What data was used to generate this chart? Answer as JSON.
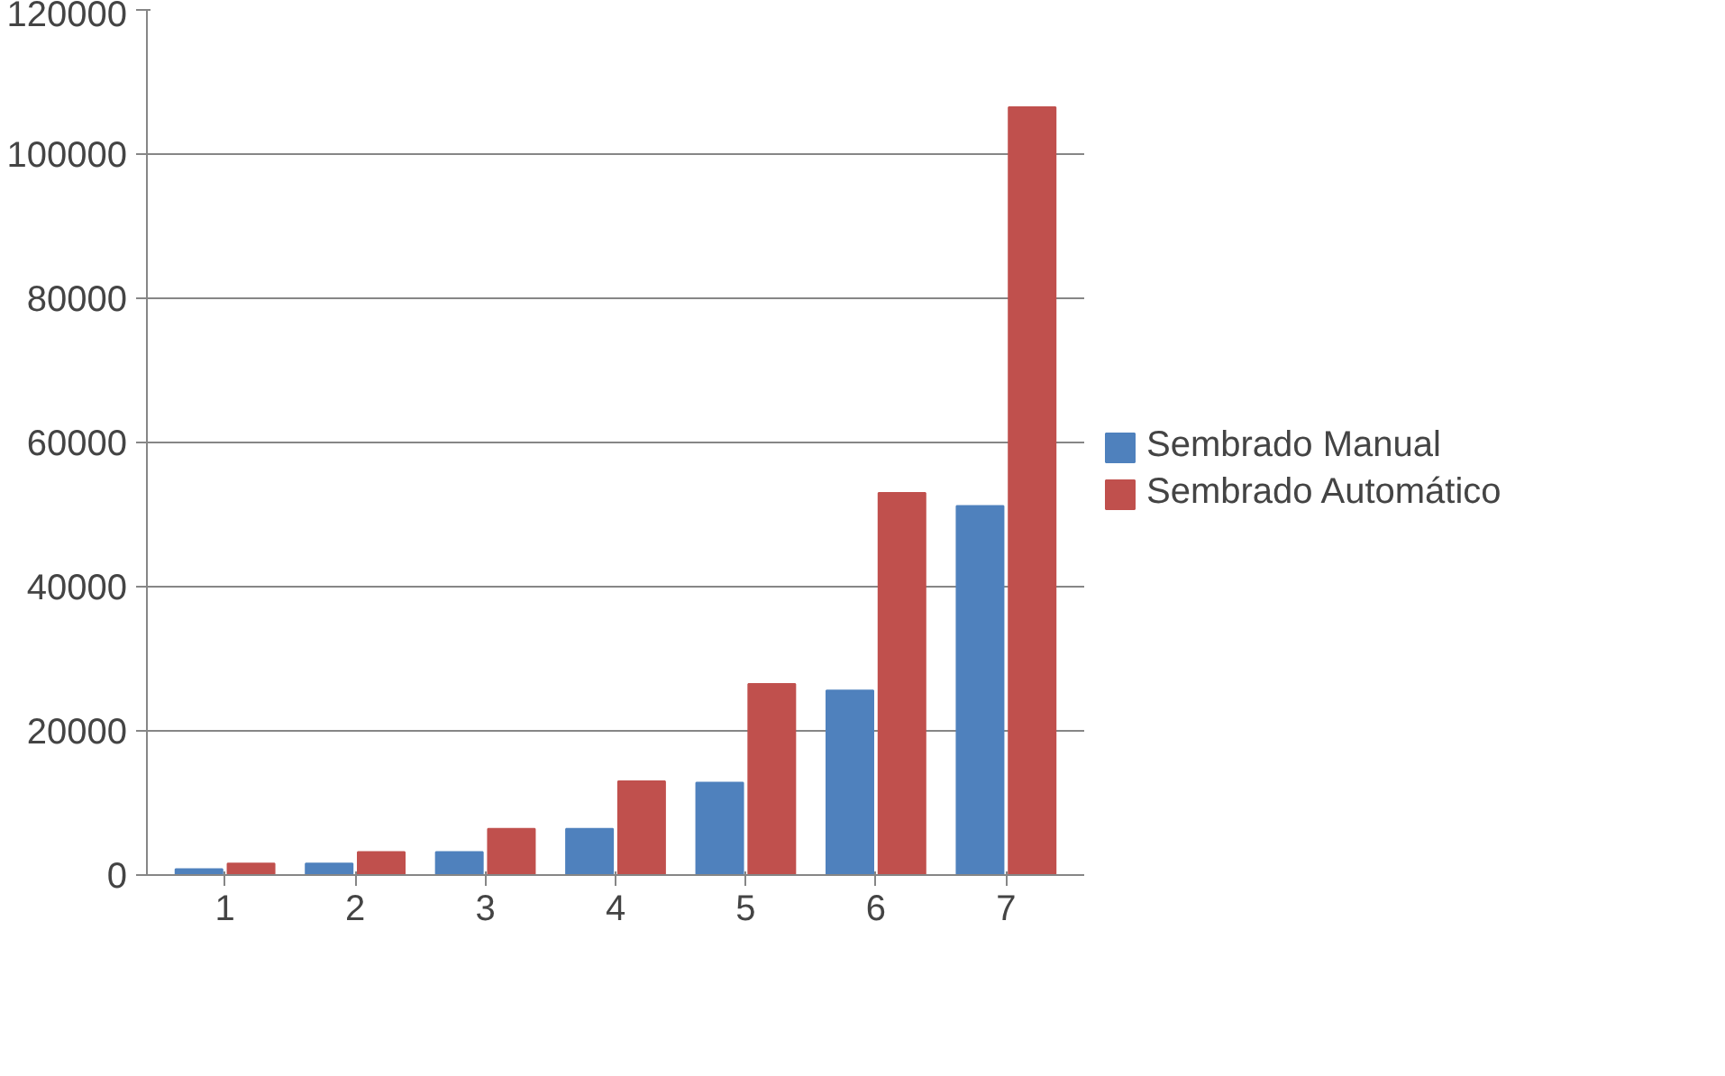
{
  "chart_data": {
    "type": "bar",
    "categories": [
      "1",
      "2",
      "3",
      "4",
      "5",
      "6",
      "7"
    ],
    "series": [
      {
        "name": "Sembrado Manual",
        "color": "#4f81bd",
        "values": [
          800,
          1600,
          3200,
          6400,
          12800,
          25600,
          51200
        ]
      },
      {
        "name": "Sembrado Automático",
        "color": "#c0504d",
        "values": [
          1600,
          3200,
          6400,
          13000,
          26500,
          53000,
          106500
        ]
      }
    ],
    "ylim": [
      0,
      120000
    ],
    "yticks": [
      0,
      20000,
      40000,
      60000,
      80000,
      100000,
      120000
    ],
    "grid": "y",
    "legend": "right"
  }
}
